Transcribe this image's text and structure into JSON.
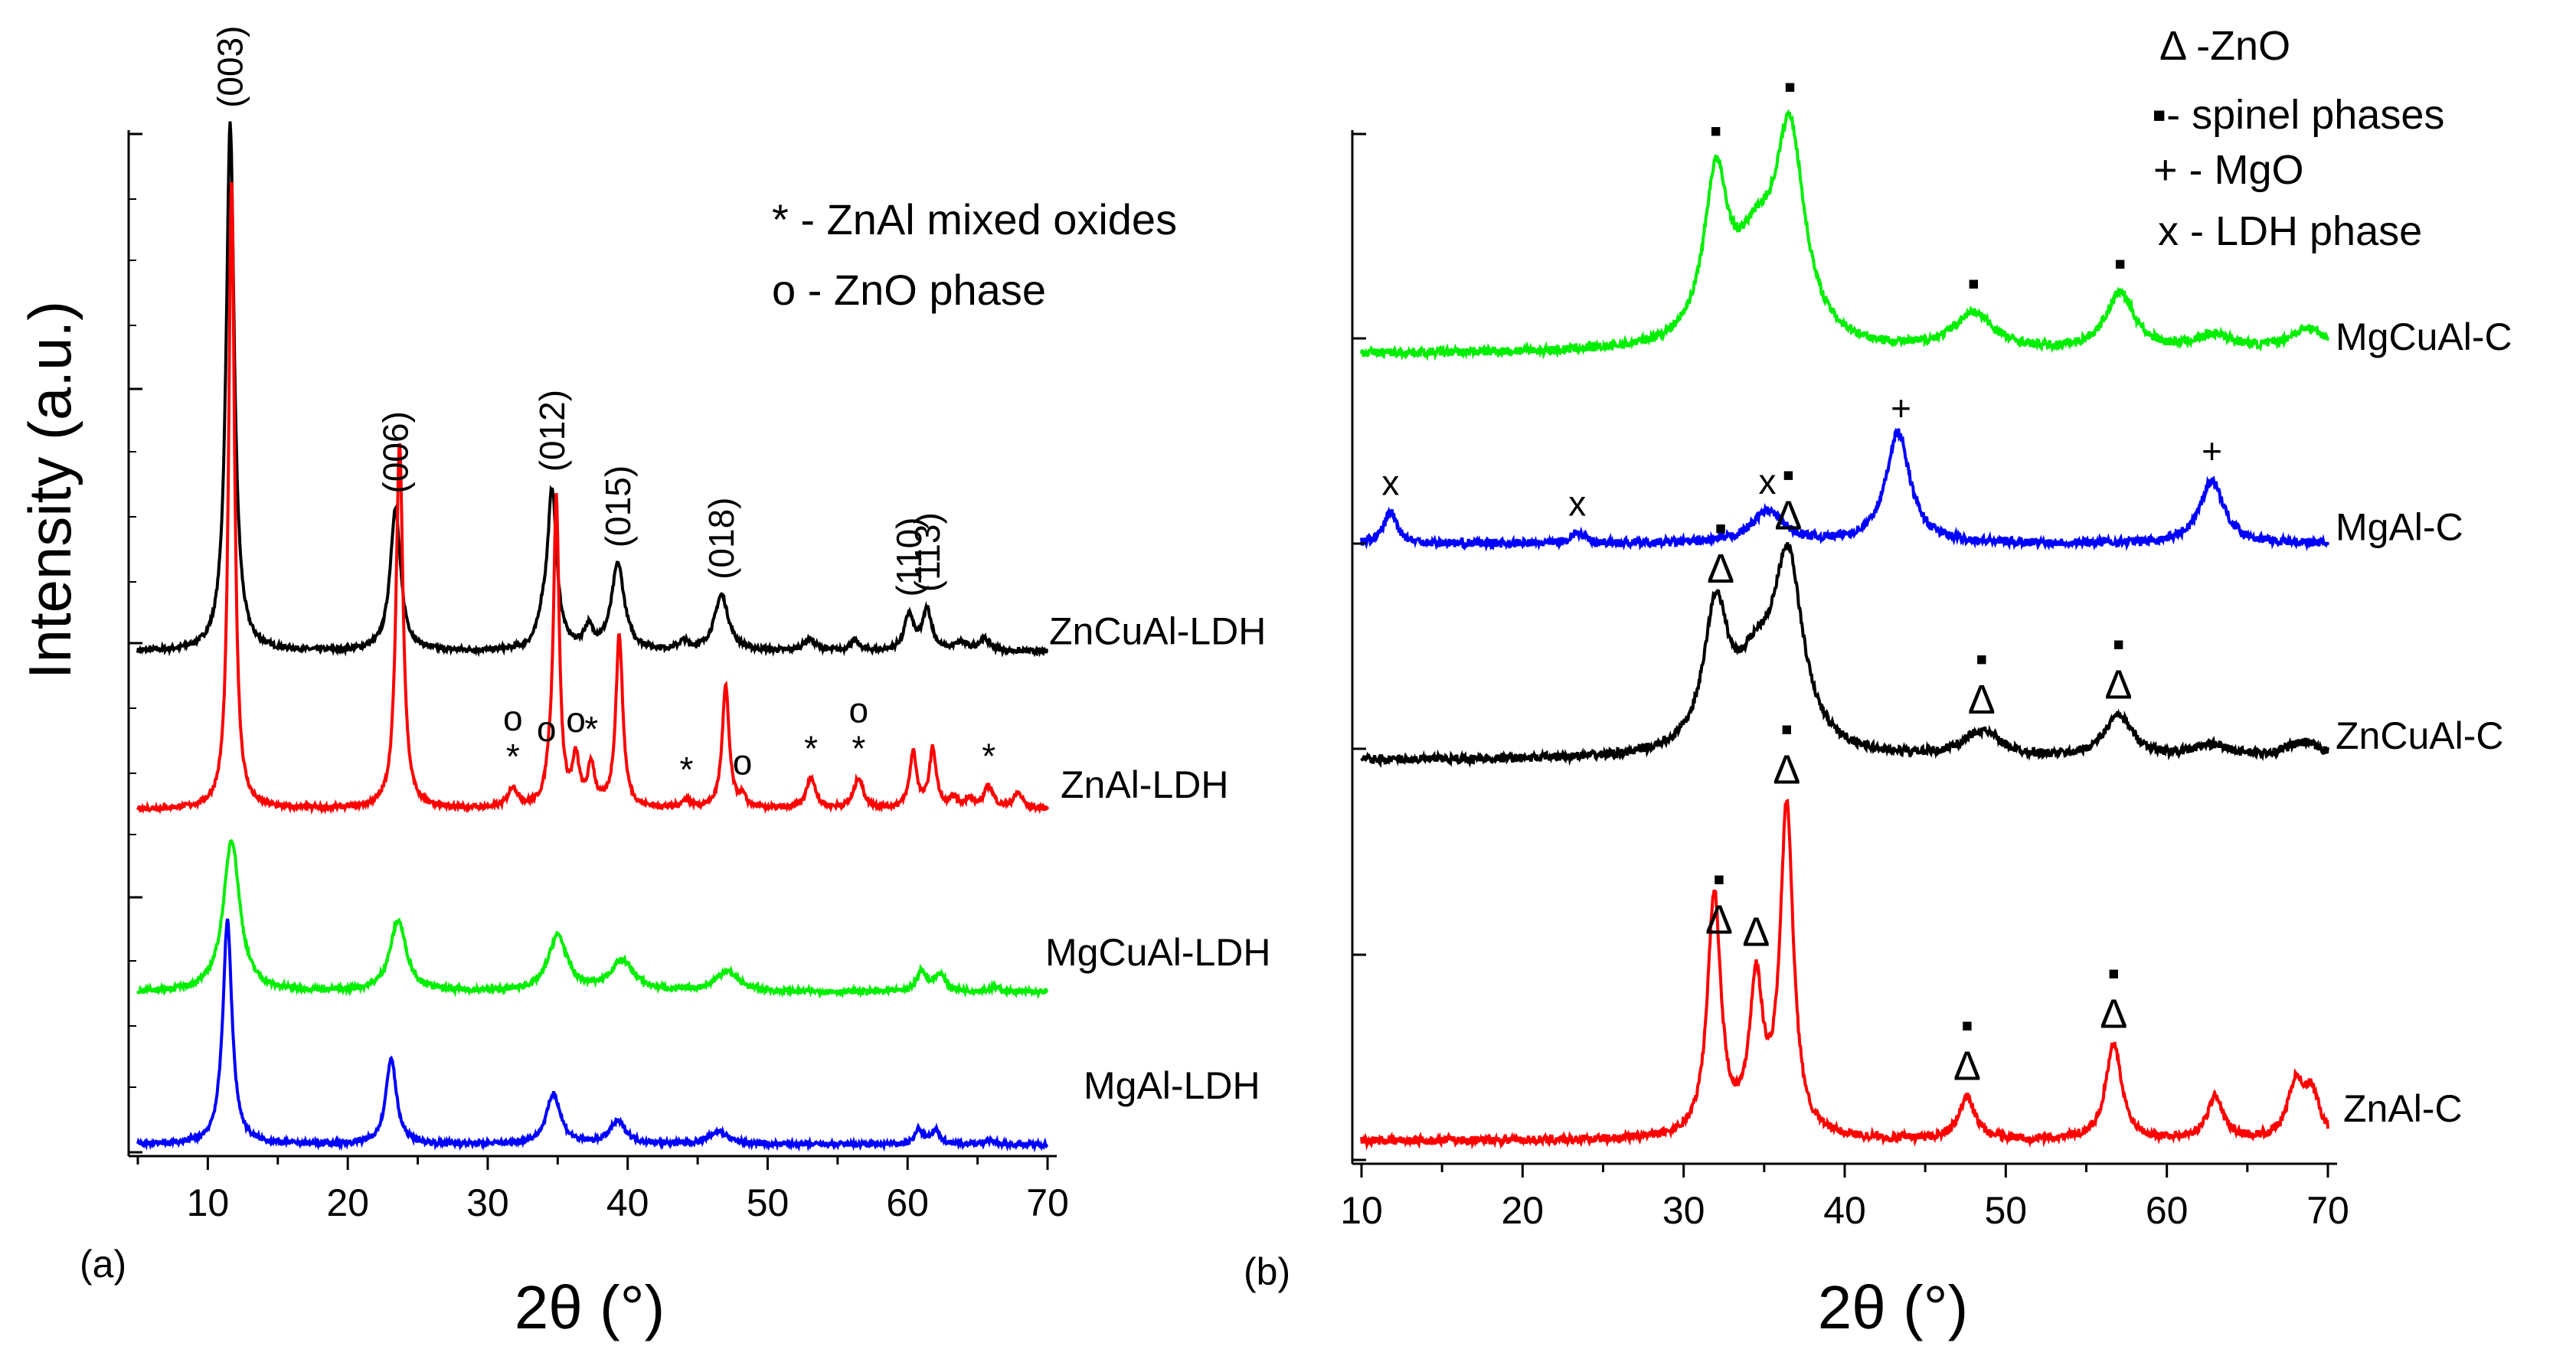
{
  "figure": {
    "ylabel": "Intensity (a.u.)",
    "xlabel": "2θ (°)"
  },
  "chart_data": [
    {
      "type": "line",
      "panel_label": "(a)",
      "xlabel": "2θ (°)",
      "ylabel": "Intensity (a.u.)",
      "xlim": [
        5,
        70
      ],
      "xticks": [
        10,
        20,
        30,
        40,
        50,
        60,
        70
      ],
      "legend": [
        "* - ZnAl mixed oxides",
        "o - ZnO phase"
      ],
      "series": [
        {
          "name": "ZnCuAl-LDH",
          "color": "#000000",
          "offset": 0.485,
          "peaks": [
            [
              11.6,
              0.52,
              0.35
            ],
            [
              23.4,
              0.14,
              0.45
            ],
            [
              33.9,
              0.02,
              0.4
            ],
            [
              34.6,
              0.155,
              0.4
            ],
            [
              37.2,
              0.02,
              0.4
            ],
            [
              39.3,
              0.085,
              0.55
            ],
            [
              44.0,
              0.008,
              0.4
            ],
            [
              46.7,
              0.055,
              0.6
            ],
            [
              53.0,
              0.012,
              0.5
            ],
            [
              56.2,
              0.01,
              0.4
            ],
            [
              60.1,
              0.035,
              0.4
            ],
            [
              61.4,
              0.04,
              0.4
            ],
            [
              63.8,
              0.008,
              0.5
            ],
            [
              65.5,
              0.012,
              0.5
            ]
          ],
          "peak_labels": [
            {
              "x": 11.6,
              "text": "(003)"
            },
            {
              "x": 23.4,
              "text": "(006)"
            },
            {
              "x": 34.6,
              "text": "(012)"
            },
            {
              "x": 39.3,
              "text": "(015)"
            },
            {
              "x": 46.7,
              "text": "(018)"
            },
            {
              "x": 60.1,
              "text": "(110)"
            },
            {
              "x": 61.4,
              "text": "(113)"
            }
          ]
        },
        {
          "name": "ZnAl-LDH",
          "color": "#ff0000",
          "offset": 0.33,
          "peaks": [
            [
              11.7,
              0.62,
              0.25
            ],
            [
              23.7,
              0.36,
              0.3
            ],
            [
              31.8,
              0.02,
              0.4
            ],
            [
              34.4,
              0.02,
              0.3
            ],
            [
              34.9,
              0.3,
              0.25
            ],
            [
              36.3,
              0.045,
              0.3
            ],
            [
              37.4,
              0.04,
              0.3
            ],
            [
              39.4,
              0.17,
              0.3
            ],
            [
              44.2,
              0.008,
              0.4
            ],
            [
              47.0,
              0.12,
              0.3
            ],
            [
              48.2,
              0.01,
              0.3
            ],
            [
              53.1,
              0.03,
              0.4
            ],
            [
              56.5,
              0.03,
              0.4
            ],
            [
              60.4,
              0.055,
              0.3
            ],
            [
              61.8,
              0.058,
              0.3
            ],
            [
              63.3,
              0.01,
              0.3
            ],
            [
              64.4,
              0.01,
              0.3
            ],
            [
              65.8,
              0.022,
              0.4
            ],
            [
              67.9,
              0.015,
              0.4
            ]
          ],
          "markers": [
            {
              "x": 31.8,
              "text": "*"
            },
            {
              "x": 31.8,
              "text": "o"
            },
            {
              "x": 34.2,
              "text": "o"
            },
            {
              "x": 36.3,
              "text": "o"
            },
            {
              "x": 37.4,
              "text": "*"
            },
            {
              "x": 44.2,
              "text": "*"
            },
            {
              "x": 48.2,
              "text": "o"
            },
            {
              "x": 53.1,
              "text": "*"
            },
            {
              "x": 56.5,
              "text": "*"
            },
            {
              "x": 56.5,
              "text": "o"
            },
            {
              "x": 65.8,
              "text": "*"
            }
          ]
        },
        {
          "name": "MgCuAl-LDH",
          "color": "#00ee00",
          "offset": 0.15,
          "peaks": [
            [
              11.7,
              0.15,
              0.7
            ],
            [
              23.6,
              0.07,
              0.7
            ],
            [
              35.0,
              0.055,
              0.8
            ],
            [
              39.6,
              0.03,
              1.0
            ],
            [
              47.1,
              0.02,
              1.0
            ],
            [
              61.0,
              0.02,
              0.4
            ],
            [
              62.3,
              0.017,
              0.5
            ],
            [
              66.2,
              0.004,
              0.5
            ]
          ]
        },
        {
          "name": "MgAl-LDH",
          "color": "#0000ff",
          "offset": 0.0,
          "peaks": [
            [
              11.4,
              0.22,
              0.4
            ],
            [
              23.1,
              0.085,
              0.45
            ],
            [
              34.7,
              0.05,
              0.6
            ],
            [
              39.3,
              0.022,
              0.7
            ],
            [
              46.5,
              0.013,
              0.8
            ],
            [
              60.8,
              0.015,
              0.3
            ],
            [
              62.0,
              0.014,
              0.4
            ],
            [
              65.8,
              0.004,
              0.5
            ]
          ]
        }
      ]
    },
    {
      "type": "line",
      "panel_label": "(b)",
      "xlabel": "2θ (°)",
      "xlim": [
        10,
        70
      ],
      "xticks": [
        10,
        20,
        30,
        40,
        50,
        60,
        70
      ],
      "legend": [
        "Δ -ZnO",
        "▪- spinel phases",
        "+ - MgO",
        "x - LDH phase"
      ],
      "series": [
        {
          "name": "MgCuAl-C",
          "color": "#00ee00",
          "offset": 0.745,
          "peaks": [
            [
              32.0,
              0.15,
              0.9
            ],
            [
              34.5,
              0.08,
              1.6
            ],
            [
              36.6,
              0.19,
              1.1
            ],
            [
              48.0,
              0.035,
              1.5
            ],
            [
              57.1,
              0.055,
              1.1
            ],
            [
              63.0,
              0.015,
              1.5
            ],
            [
              68.8,
              0.022,
              1.5
            ]
          ],
          "markers": [
            {
              "x": 32.0,
              "text": "▪"
            },
            {
              "x": 36.6,
              "text": "▪"
            },
            {
              "x": 48.0,
              "text": "▪"
            },
            {
              "x": 57.1,
              "text": "▪"
            }
          ]
        },
        {
          "name": "MgAl-C",
          "color": "#0000ff",
          "offset": 0.565,
          "peaks": [
            [
              11.8,
              0.03,
              0.5
            ],
            [
              23.4,
              0.01,
              0.5
            ],
            [
              35.2,
              0.03,
              1.2
            ],
            [
              43.3,
              0.105,
              0.9
            ],
            [
              62.8,
              0.06,
              0.9
            ]
          ],
          "markers": [
            {
              "x": 11.8,
              "text": "x"
            },
            {
              "x": 23.4,
              "text": "x"
            },
            {
              "x": 35.2,
              "text": "x"
            },
            {
              "x": 43.5,
              "text": "+"
            },
            {
              "x": 62.8,
              "text": "+"
            }
          ]
        },
        {
          "name": "ZnCuAl-C",
          "color": "#000000",
          "offset": 0.36,
          "peaks": [
            [
              32.0,
              0.13,
              0.9
            ],
            [
              34.5,
              0.07,
              1.6
            ],
            [
              36.5,
              0.17,
              1.1
            ],
            [
              48.5,
              0.025,
              1.4
            ],
            [
              57.0,
              0.04,
              1.1
            ],
            [
              62.8,
              0.012,
              1.5
            ],
            [
              68.5,
              0.015,
              1.5
            ]
          ],
          "markers": [
            {
              "x": 32.3,
              "text": "▪"
            },
            {
              "x": 32.3,
              "text": "Δ"
            },
            {
              "x": 36.5,
              "text": "▪"
            },
            {
              "x": 36.5,
              "text": "Δ"
            },
            {
              "x": 48.5,
              "text": "▪"
            },
            {
              "x": 48.5,
              "text": "Δ"
            },
            {
              "x": 57.0,
              "text": "▪"
            },
            {
              "x": 57.0,
              "text": "Δ"
            }
          ]
        },
        {
          "name": "ZnAl-C",
          "color": "#ff0000",
          "offset": 0.0,
          "peaks": [
            [
              31.9,
              0.23,
              0.5
            ],
            [
              34.5,
              0.14,
              0.5
            ],
            [
              36.4,
              0.31,
              0.5
            ],
            [
              47.6,
              0.04,
              0.6
            ],
            [
              56.7,
              0.09,
              0.6
            ],
            [
              63.0,
              0.04,
              0.6
            ],
            [
              68.0,
              0.05,
              0.6
            ],
            [
              69.0,
              0.04,
              0.6
            ]
          ],
          "markers": [
            {
              "x": 32.2,
              "text": "▪"
            },
            {
              "x": 32.2,
              "text": "Δ"
            },
            {
              "x": 34.5,
              "text": "Δ"
            },
            {
              "x": 36.4,
              "text": "▪"
            },
            {
              "x": 36.4,
              "text": "Δ"
            },
            {
              "x": 47.6,
              "text": "▪"
            },
            {
              "x": 47.6,
              "text": "Δ"
            },
            {
              "x": 56.7,
              "text": "▪"
            },
            {
              "x": 56.7,
              "text": "Δ"
            }
          ]
        }
      ]
    }
  ]
}
